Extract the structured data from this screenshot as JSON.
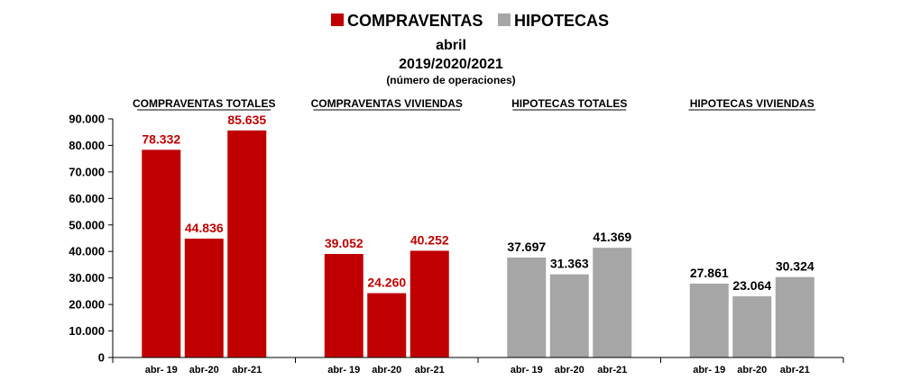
{
  "legend": {
    "items": [
      {
        "label": "COMPRAVENTAS",
        "color": "#c00000"
      },
      {
        "label": "HIPOTECAS",
        "color": "#a6a6a6"
      }
    ]
  },
  "title": {
    "line1": "abril",
    "line2": "2019/2020/2021",
    "line3": "(número de operaciones)"
  },
  "chart_data": {
    "type": "bar",
    "ylim": [
      0,
      90000
    ],
    "yticks": [
      "0",
      "10.000",
      "20.000",
      "30.000",
      "40.000",
      "50.000",
      "60.000",
      "70.000",
      "80.000",
      "90.000"
    ],
    "ytick_values": [
      0,
      10000,
      20000,
      30000,
      40000,
      50000,
      60000,
      70000,
      80000,
      90000
    ],
    "grid": false,
    "legend_position": "top-center",
    "groups": [
      {
        "title": "COMPRAVENTAS TOTALES",
        "color": "#c00000",
        "label_color": "#c00000",
        "categories": [
          "abr- 19",
          "abr-20",
          "abr-21"
        ],
        "values": [
          78332,
          44836,
          85635
        ],
        "labels": [
          "78.332",
          "44.836",
          "85.635"
        ]
      },
      {
        "title": "COMPRAVENTAS VIVIENDAS",
        "color": "#c00000",
        "label_color": "#c00000",
        "categories": [
          "abr- 19",
          "abr-20",
          "abr-21"
        ],
        "values": [
          39052,
          24260,
          40252
        ],
        "labels": [
          "39.052",
          "24.260",
          "40.252"
        ]
      },
      {
        "title": "HIPOTECAS TOTALES",
        "color": "#a6a6a6",
        "label_color": "#000000",
        "categories": [
          "abr- 19",
          "abr-20",
          "abr-21"
        ],
        "values": [
          37697,
          31363,
          41369
        ],
        "labels": [
          "37.697",
          "31.363",
          "41.369"
        ]
      },
      {
        "title": "HIPOTECAS VIVIENDAS",
        "color": "#a6a6a6",
        "label_color": "#000000",
        "categories": [
          "abr- 19",
          "abr-20",
          "abr-21"
        ],
        "values": [
          27861,
          23064,
          30324
        ],
        "labels": [
          "27.861",
          "23.064",
          "30.324"
        ]
      }
    ]
  }
}
